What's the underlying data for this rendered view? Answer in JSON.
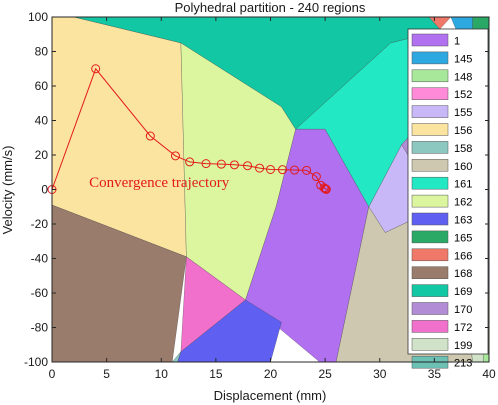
{
  "chart_data": {
    "type": "scatter",
    "title": "Polyhedral partition - 240 regions",
    "xlabel": "Displacement (mm)",
    "ylabel": "Velocity (mm/s)",
    "xlim": [
      0,
      40
    ],
    "ylim": [
      -100,
      100
    ],
    "xticks": [
      0,
      5,
      10,
      15,
      20,
      25,
      30,
      35,
      40
    ],
    "yticks": [
      -100,
      -80,
      -60,
      -40,
      -20,
      0,
      20,
      40,
      60,
      80,
      100
    ],
    "grid": false,
    "legend_position": "right, inside plot",
    "annotation": {
      "text": "Convergence trajectory",
      "x": 3.4,
      "y": 1.5
    },
    "regions": [
      {
        "id": "1",
        "color": "#b070f0",
        "polygon": [
          [
            17.7,
            -64
          ],
          [
            20.5,
            -10
          ],
          [
            22.3,
            35
          ],
          [
            25,
            35
          ],
          [
            29,
            -10
          ],
          [
            26,
            -100
          ],
          [
            24.5,
            -100
          ]
        ]
      },
      {
        "id": "145",
        "color": "#2ea8e0",
        "polygon": [
          [
            36.5,
            100
          ],
          [
            38.5,
            100
          ],
          [
            38.5,
            70
          ]
        ]
      },
      {
        "id": "148",
        "color": "#a8e89a",
        "polygon": [
          [
            39.2,
            -60
          ],
          [
            40,
            -60
          ],
          [
            40,
            -100
          ],
          [
            39.5,
            -100
          ]
        ]
      },
      {
        "id": "152",
        "color": "#ff8ad8",
        "polygon": [
          [
            35.5,
            -10
          ],
          [
            38.5,
            -10
          ],
          [
            37.5,
            -40
          ]
        ]
      },
      {
        "id": "155",
        "color": "#c8b8f8",
        "polygon": [
          [
            29,
            -10
          ],
          [
            32,
            26
          ],
          [
            35.5,
            -10
          ],
          [
            30.5,
            -25
          ]
        ]
      },
      {
        "id": "156",
        "color": "#fbe3a0",
        "polygon": [
          [
            0,
            -9
          ],
          [
            0,
            100
          ],
          [
            2,
            100
          ],
          [
            11.8,
            85
          ],
          [
            12.3,
            -39
          ]
        ]
      },
      {
        "id": "158",
        "color": "#8cc8c0",
        "polygon": [
          [
            11,
            -100
          ],
          [
            11.8,
            -94
          ],
          [
            11.5,
            -100
          ]
        ]
      },
      {
        "id": "160",
        "color": "#cfc8b0",
        "polygon": [
          [
            29,
            -10
          ],
          [
            30.5,
            -25
          ],
          [
            35.5,
            -10
          ],
          [
            37.5,
            -40
          ],
          [
            38.5,
            -100
          ],
          [
            26,
            -100
          ]
        ]
      },
      {
        "id": "161",
        "color": "#22e8c4",
        "polygon": [
          [
            22.3,
            35
          ],
          [
            25,
            35
          ],
          [
            29,
            -10
          ],
          [
            32,
            26
          ],
          [
            38.5,
            70
          ],
          [
            36,
            93
          ],
          [
            31,
            85
          ]
        ]
      },
      {
        "id": "162",
        "color": "#dcf6a0",
        "polygon": [
          [
            11.8,
            85
          ],
          [
            12.3,
            -39
          ],
          [
            17.7,
            -64
          ],
          [
            20.5,
            -10
          ],
          [
            22.3,
            35
          ],
          [
            21,
            48
          ]
        ]
      },
      {
        "id": "163",
        "color": "#5f5ff2",
        "polygon": [
          [
            11.5,
            -100
          ],
          [
            11.8,
            -94
          ],
          [
            17.7,
            -64
          ],
          [
            21,
            -77
          ],
          [
            20,
            -100
          ]
        ]
      },
      {
        "id": "165",
        "color": "#2aa866",
        "polygon": [
          [
            38.5,
            100
          ],
          [
            40,
            100
          ],
          [
            40,
            92
          ],
          [
            38.5,
            86
          ]
        ]
      },
      {
        "id": "166",
        "color": "#f07868",
        "polygon": [
          [
            34.5,
            100
          ],
          [
            36.5,
            100
          ],
          [
            35.5,
            93
          ]
        ]
      },
      {
        "id": "168",
        "color": "#9a7c6c",
        "polygon": [
          [
            0,
            -9
          ],
          [
            12.3,
            -39
          ],
          [
            11,
            -100
          ],
          [
            0,
            -100
          ]
        ]
      },
      {
        "id": "169",
        "color": "#12c8a4",
        "polygon": [
          [
            2,
            100
          ],
          [
            34.5,
            100
          ],
          [
            35.5,
            93
          ],
          [
            36,
            93
          ],
          [
            31,
            85
          ],
          [
            22.3,
            35
          ],
          [
            21,
            48
          ],
          [
            11.8,
            85
          ]
        ]
      },
      {
        "id": "170",
        "color": "#b28cd4",
        "polygon": [
          [
            38.5,
            70
          ],
          [
            40,
            70
          ],
          [
            40,
            -60
          ],
          [
            39.2,
            -60
          ],
          [
            38.5,
            -10
          ],
          [
            35.5,
            -10
          ],
          [
            32,
            26
          ]
        ]
      },
      {
        "id": "172",
        "color": "#f070cc",
        "polygon": [
          [
            11.8,
            -94
          ],
          [
            12.3,
            -39
          ],
          [
            17.7,
            -64
          ]
        ]
      },
      {
        "id": "199",
        "color": "#d0e2c8",
        "polygon": [
          [
            38.5,
            -10
          ],
          [
            39.2,
            -60
          ],
          [
            39.5,
            -100
          ],
          [
            38.5,
            -100
          ],
          [
            37.5,
            -40
          ]
        ]
      },
      {
        "id": "213",
        "color": "#6cc0b4",
        "polygon": [
          [
            38.5,
            70
          ],
          [
            38.5,
            86
          ],
          [
            40,
            92
          ],
          [
            40,
            70
          ]
        ]
      }
    ],
    "series": [
      {
        "type": "line+scatter",
        "color": "#e31a1c",
        "x": [
          0,
          4,
          9,
          11.3,
          12.6,
          14.1,
          15.5,
          16.7,
          17.9,
          19,
          20,
          21.1,
          22.2,
          23.3,
          24.2,
          24.6,
          24.9,
          25,
          25.1,
          25.1
        ],
        "y": [
          0,
          70,
          31,
          19.5,
          16,
          15,
          14.7,
          14.3,
          13.8,
          12.4,
          11.6,
          11.5,
          11.3,
          11.1,
          7.5,
          2.5,
          1,
          0.5,
          0.2,
          0
        ]
      }
    ]
  }
}
